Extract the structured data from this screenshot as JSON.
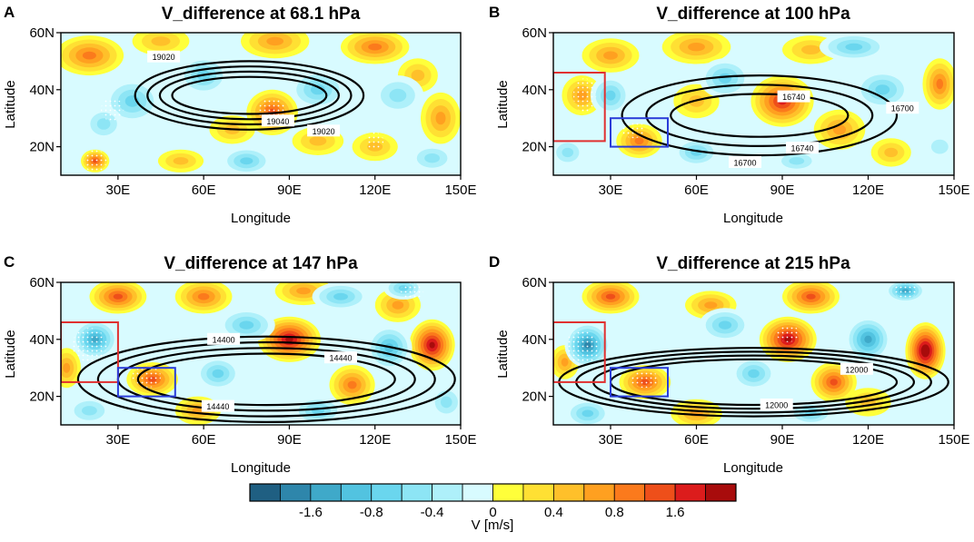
{
  "chart_data": {
    "type": "heatmap",
    "colorbar": {
      "label": "V [m/s]",
      "tick_labels": [
        "-1.6",
        "-0.8",
        "-0.4",
        "0",
        "0.4",
        "0.8",
        "1.6"
      ],
      "tick_bin_index": [
        2,
        4,
        6,
        8,
        10,
        12,
        14
      ],
      "bins": 16,
      "colors": [
        "#1f5f82",
        "#2e86ab",
        "#3fa9c9",
        "#52c3e0",
        "#6ad6ee",
        "#8de5f5",
        "#aef0fa",
        "#d8fbff",
        "#ffff3a",
        "#ffe033",
        "#ffc02a",
        "#ffa020",
        "#fb7a1c",
        "#ee4f1a",
        "#dc1c1c",
        "#a80c0c"
      ]
    },
    "colors": {
      "pos_strong": "#e34c1f",
      "neg_strong": "#3c9fc5",
      "red_box": "#e03030",
      "blue_box": "#2a3cd8"
    },
    "panels": [
      {
        "id": "A",
        "title": "V_difference at 68.1 hPa",
        "xlabel": "Longitude",
        "ylabel": "Latitude",
        "xlim": [
          10,
          150
        ],
        "ylim": [
          10,
          60
        ],
        "xticks": [
          30,
          60,
          90,
          120,
          150
        ],
        "xtick_labels": [
          "30E",
          "60E",
          "90E",
          "120E",
          "150E"
        ],
        "yticks": [
          20,
          40,
          60
        ],
        "ytick_labels": [
          "20N",
          "40N",
          "60N"
        ],
        "contour_labels": [
          {
            "text": "19020",
            "lon": 46,
            "lat": 51.5
          },
          {
            "text": "19040",
            "lon": 86,
            "lat": 29
          },
          {
            "text": "19020",
            "lon": 102,
            "lat": 25.5
          }
        ],
        "contours": {
          "center": [
            76,
            38
          ],
          "outer": [
            40,
            12
          ],
          "inner": [
            27,
            6.5
          ],
          "count": 4
        },
        "boxes": [],
        "blobs": [
          [
            20,
            52,
            1.1,
            12,
            7
          ],
          [
            45,
            57,
            0.6,
            10,
            5
          ],
          [
            85,
            57,
            0.9,
            12,
            6
          ],
          [
            120,
            55,
            1.1,
            12,
            6
          ],
          [
            84,
            32,
            1.5,
            9,
            8
          ],
          [
            70,
            26,
            0.6,
            8,
            5
          ],
          [
            100,
            22,
            0.7,
            9,
            5
          ],
          [
            120,
            20,
            0.6,
            8,
            5
          ],
          [
            143,
            30,
            0.8,
            7,
            9
          ],
          [
            135,
            45,
            0.6,
            7,
            6
          ],
          [
            22,
            15,
            1.3,
            5,
            4
          ],
          [
            52,
            15,
            0.7,
            8,
            4
          ],
          [
            35,
            36,
            -0.9,
            10,
            8
          ],
          [
            60,
            45,
            -0.8,
            9,
            7
          ],
          [
            100,
            40,
            -0.9,
            10,
            7
          ],
          [
            128,
            38,
            -0.7,
            9,
            7
          ],
          [
            25,
            28,
            -0.6,
            7,
            6
          ],
          [
            75,
            15,
            -0.8,
            9,
            5
          ],
          [
            140,
            16,
            -0.6,
            8,
            5
          ]
        ],
        "stipple": [
          [
            22,
            15,
            4,
            4
          ],
          [
            84,
            32,
            5,
            5
          ],
          [
            28,
            33,
            4,
            4
          ],
          [
            120,
            22,
            3,
            3
          ]
        ]
      },
      {
        "id": "B",
        "title": "V_difference at 100 hPa",
        "xlabel": "Longitude",
        "ylabel": "Latitude",
        "xlim": [
          10,
          150
        ],
        "ylim": [
          10,
          60
        ],
        "xticks": [
          30,
          60,
          90,
          120,
          150
        ],
        "xtick_labels": [
          "30E",
          "60E",
          "90E",
          "120E",
          "150E"
        ],
        "yticks": [
          20,
          40,
          60
        ],
        "ytick_labels": [
          "20N",
          "40N",
          "60N"
        ],
        "contour_labels": [
          {
            "text": "16740",
            "lon": 94,
            "lat": 37.5
          },
          {
            "text": "16700",
            "lon": 132,
            "lat": 33.5
          },
          {
            "text": "16740",
            "lon": 97,
            "lat": 19.5
          },
          {
            "text": "16700",
            "lon": 77,
            "lat": 14.5
          }
        ],
        "contours": {
          "center": [
            82,
            31
          ],
          "outer": [
            48,
            14
          ],
          "inner": [
            31,
            7.5
          ],
          "count": 3
        },
        "boxes": [
          {
            "kind": "red",
            "lon": [
              10,
              28
            ],
            "lat": [
              22,
              46
            ]
          },
          {
            "kind": "blue",
            "lon": [
              30,
              50
            ],
            "lat": [
              20,
              30
            ]
          }
        ],
        "blobs": [
          [
            20,
            38,
            1.0,
            7,
            7
          ],
          [
            30,
            52,
            1.0,
            10,
            6
          ],
          [
            60,
            55,
            1.0,
            12,
            6
          ],
          [
            90,
            36,
            1.6,
            11,
            9
          ],
          [
            110,
            26,
            1.0,
            9,
            7
          ],
          [
            145,
            42,
            1.2,
            6,
            9
          ],
          [
            40,
            22,
            1.2,
            8,
            6
          ],
          [
            60,
            36,
            0.6,
            8,
            6
          ],
          [
            128,
            18,
            0.6,
            7,
            5
          ],
          [
            100,
            54,
            0.6,
            10,
            5
          ],
          [
            30,
            38,
            -0.9,
            7,
            7
          ],
          [
            70,
            44,
            -1.0,
            9,
            7
          ],
          [
            125,
            40,
            -1.0,
            10,
            7
          ],
          [
            115,
            55,
            -0.8,
            12,
            5
          ],
          [
            15,
            18,
            -0.7,
            6,
            5
          ],
          [
            60,
            18,
            -0.9,
            8,
            5
          ],
          [
            95,
            15,
            -0.6,
            8,
            4
          ],
          [
            145,
            20,
            -0.5,
            6,
            5
          ]
        ],
        "stipple": [
          [
            21,
            38,
            4,
            6
          ],
          [
            38,
            26,
            4,
            3
          ]
        ]
      },
      {
        "id": "C",
        "title": "V_difference at 147 hPa",
        "xlabel": "Longitude",
        "ylabel": "Latitude",
        "xlim": [
          10,
          150
        ],
        "ylim": [
          10,
          60
        ],
        "xticks": [
          30,
          60,
          90,
          120,
          150
        ],
        "xtick_labels": [
          "30E",
          "60E",
          "90E",
          "120E",
          "150E"
        ],
        "yticks": [
          20,
          40,
          60
        ],
        "ytick_labels": [
          "20N",
          "40N",
          "60N"
        ],
        "contour_labels": [
          {
            "text": "14400",
            "lon": 67,
            "lat": 40
          },
          {
            "text": "14440",
            "lon": 108,
            "lat": 33.5
          },
          {
            "text": "14440",
            "lon": 65,
            "lat": 16.5
          }
        ],
        "contours": {
          "center": [
            82,
            26
          ],
          "outer": [
            66,
            15
          ],
          "inner": [
            45,
            9
          ],
          "count": 4
        },
        "boxes": [
          {
            "kind": "red",
            "lon": [
              10,
              30
            ],
            "lat": [
              25,
              46
            ]
          },
          {
            "kind": "blue",
            "lon": [
              30,
              50
            ],
            "lat": [
              20,
              30
            ]
          }
        ],
        "blobs": [
          [
            90,
            40,
            2.0,
            11,
            8
          ],
          [
            140,
            38,
            1.8,
            8,
            9
          ],
          [
            112,
            24,
            1.2,
            8,
            7
          ],
          [
            42,
            26,
            1.3,
            9,
            6
          ],
          [
            30,
            55,
            1.3,
            10,
            6
          ],
          [
            60,
            55,
            1.1,
            10,
            6
          ],
          [
            95,
            57,
            1.0,
            10,
            5
          ],
          [
            128,
            52,
            0.8,
            8,
            6
          ],
          [
            12,
            30,
            0.8,
            5,
            7
          ],
          [
            58,
            15,
            0.8,
            8,
            5
          ],
          [
            22,
            40,
            -1.5,
            8,
            7
          ],
          [
            125,
            37,
            -1.2,
            8,
            8
          ],
          [
            75,
            45,
            -1.0,
            10,
            6
          ],
          [
            108,
            55,
            -0.9,
            10,
            5
          ],
          [
            130,
            58,
            -1.0,
            7,
            4
          ],
          [
            65,
            28,
            -0.8,
            8,
            6
          ],
          [
            100,
            15,
            -0.9,
            9,
            5
          ],
          [
            20,
            15,
            -0.7,
            8,
            5
          ],
          [
            145,
            18,
            -0.6,
            6,
            6
          ]
        ],
        "stipple": [
          [
            20,
            38,
            6,
            6
          ],
          [
            40,
            27,
            5,
            4
          ],
          [
            133,
            57,
            4,
            3
          ]
        ]
      },
      {
        "id": "D",
        "title": "V_difference at 215 hPa",
        "xlabel": "Longitude",
        "ylabel": "Latitude",
        "xlim": [
          10,
          150
        ],
        "ylim": [
          10,
          60
        ],
        "xticks": [
          30,
          60,
          90,
          120,
          150
        ],
        "xtick_labels": [
          "30E",
          "60E",
          "90E",
          "120E",
          "150E"
        ],
        "yticks": [
          20,
          40,
          60
        ],
        "ytick_labels": [
          "20N",
          "40N",
          "60N"
        ],
        "contour_labels": [
          {
            "text": "12000",
            "lon": 116,
            "lat": 29.5
          },
          {
            "text": "12000",
            "lon": 88,
            "lat": 17
          }
        ],
        "contours": {
          "center": [
            80,
            25
          ],
          "outer": [
            68,
            12
          ],
          "inner": [
            50,
            8
          ],
          "count": 4
        },
        "boxes": [
          {
            "kind": "red",
            "lon": [
              10,
              28
            ],
            "lat": [
              25,
              46
            ]
          },
          {
            "kind": "blue",
            "lon": [
              30,
              50
            ],
            "lat": [
              20,
              30
            ]
          }
        ],
        "blobs": [
          [
            92,
            40,
            2.0,
            10,
            8
          ],
          [
            140,
            36,
            2.2,
            7,
            10
          ],
          [
            42,
            25,
            1.5,
            9,
            6
          ],
          [
            108,
            25,
            1.3,
            8,
            7
          ],
          [
            30,
            55,
            1.3,
            10,
            6
          ],
          [
            100,
            55,
            1.5,
            10,
            6
          ],
          [
            65,
            52,
            0.9,
            9,
            5
          ],
          [
            14,
            32,
            0.9,
            5,
            6
          ],
          [
            60,
            14,
            0.9,
            9,
            5
          ],
          [
            120,
            18,
            0.7,
            8,
            5
          ],
          [
            22,
            38,
            -1.6,
            8,
            8
          ],
          [
            120,
            40,
            -1.3,
            8,
            8
          ],
          [
            133,
            57,
            -1.5,
            7,
            4
          ],
          [
            70,
            45,
            -1.0,
            9,
            6
          ],
          [
            80,
            28,
            -0.8,
            8,
            6
          ],
          [
            22,
            14,
            -0.8,
            8,
            5
          ],
          [
            100,
            14,
            -0.9,
            8,
            4
          ]
        ],
        "stipple": [
          [
            20,
            37,
            6,
            6
          ],
          [
            42,
            26,
            5,
            3
          ],
          [
            92,
            42,
            4,
            3
          ],
          [
            133,
            57,
            4,
            3
          ]
        ]
      }
    ]
  }
}
